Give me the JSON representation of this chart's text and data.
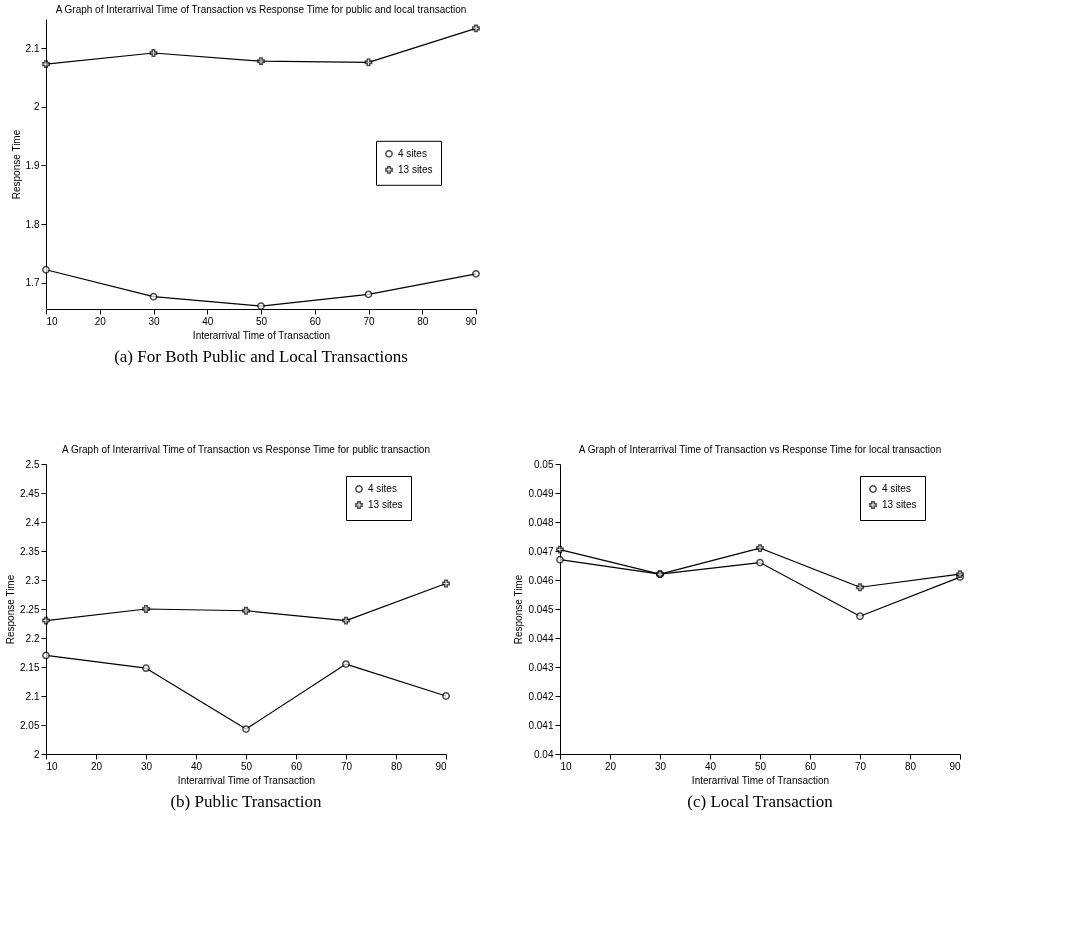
{
  "chart_data": [
    {
      "type": "line",
      "title": "A Graph of Interarrival Time of Transaction vs Response Time for public and local transaction",
      "xlabel": "Interarrival Time of Transaction",
      "ylabel": "Response Time",
      "x": [
        10,
        30,
        50,
        70,
        90
      ],
      "xlim": [
        10,
        90
      ],
      "xticks": [
        10,
        20,
        30,
        40,
        50,
        60,
        70,
        80,
        90
      ],
      "ylim": [
        1.655,
        2.15
      ],
      "yticks": [
        1.7,
        1.8,
        1.9,
        2,
        2.1
      ],
      "grid": false,
      "legend": "right",
      "line_style": "solid",
      "annotations": [
        "(a) For Both Public and Local Transactions"
      ],
      "series": [
        {
          "name": "4 sites",
          "color": "#000000",
          "marker": "circle",
          "values": [
            1.722,
            1.676,
            1.66,
            1.68,
            1.715
          ]
        },
        {
          "name": "13 sites",
          "color": "#000000",
          "marker": "cross",
          "values": [
            2.073,
            2.092,
            2.078,
            2.076,
            2.134
          ]
        }
      ]
    },
    {
      "type": "line",
      "title": "A Graph of Interarrival Time of Transaction vs Response Time for public transaction",
      "xlabel": "Interarrival Time of Transaction",
      "ylabel": "Response Time",
      "x": [
        10,
        30,
        50,
        70,
        90
      ],
      "xlim": [
        10,
        90
      ],
      "xticks": [
        10,
        20,
        30,
        40,
        50,
        60,
        70,
        80,
        90
      ],
      "ylim": [
        2,
        2.5
      ],
      "yticks": [
        2,
        2.05,
        2.1,
        2.15,
        2.2,
        2.25,
        2.3,
        2.35,
        2.4,
        2.45,
        2.5
      ],
      "grid": false,
      "legend": "top right",
      "line_style": "solid",
      "annotations": [
        "(b) Public Transaction"
      ],
      "series": [
        {
          "name": "4 sites",
          "color": "#000000",
          "marker": "circle",
          "values": [
            2.17,
            2.148,
            2.043,
            2.155,
            2.1
          ]
        },
        {
          "name": "13 sites",
          "color": "#000000",
          "marker": "cross",
          "values": [
            2.23,
            2.25,
            2.247,
            2.23,
            2.294
          ]
        }
      ]
    },
    {
      "type": "line",
      "title": "A Graph of Interarrival Time of Transaction vs Response Time for local transaction",
      "xlabel": "Interarrival Time of Transaction",
      "ylabel": "Response Time",
      "x": [
        10,
        30,
        50,
        70,
        90
      ],
      "xlim": [
        10,
        90
      ],
      "xticks": [
        10,
        20,
        30,
        40,
        50,
        60,
        70,
        80,
        90
      ],
      "ylim": [
        0.04,
        0.05
      ],
      "yticks": [
        0.04,
        0.041,
        0.042,
        0.043,
        0.044,
        0.045,
        0.046,
        0.047,
        0.048,
        0.049,
        0.05
      ],
      "grid": false,
      "legend": "top right",
      "line_style": "solid",
      "annotations": [
        "(c) Local Transaction"
      ],
      "series": [
        {
          "name": "4 sites",
          "color": "#000000",
          "marker": "circle",
          "values": [
            0.0467,
            0.0462,
            0.0466,
            0.04475,
            0.0461
          ]
        },
        {
          "name": "13 sites",
          "color": "#000000",
          "marker": "cross",
          "values": [
            0.04705,
            0.0462,
            0.0471,
            0.04575,
            0.0462
          ]
        }
      ]
    }
  ]
}
